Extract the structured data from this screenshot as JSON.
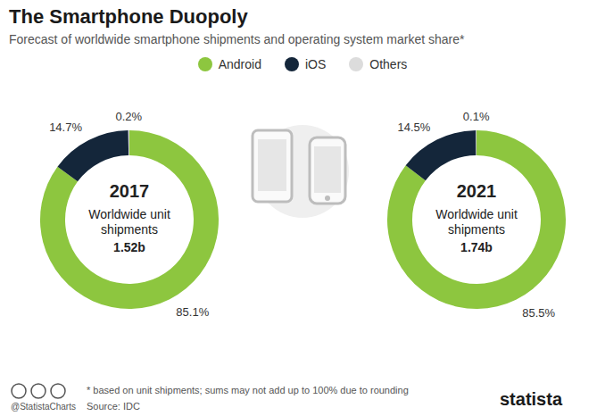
{
  "title": "The Smartphone Duopoly",
  "subtitle": "Forecast of worldwide smartphone shipments and operating system market share*",
  "legend": "top",
  "footnote": "* based on unit shipments; sums may not add up to 100% due to rounding",
  "source": "Source: IDC",
  "credit": "@StatistaCharts",
  "brand": "statista",
  "chart_data": [
    {
      "type": "pie",
      "title": "2017",
      "center_text": "Worldwide unit shipments",
      "total_label": "1.52b",
      "categories": [
        "Android",
        "iOS",
        "Others"
      ],
      "values": [
        85.1,
        14.7,
        0.2
      ],
      "value_labels": [
        "85.1%",
        "14.7%",
        "0.2%"
      ],
      "colors": [
        "#8dc63f",
        "#14263a",
        "#dcdcdc"
      ],
      "data_labels": true
    },
    {
      "type": "pie",
      "title": "2021",
      "center_text": "Worldwide unit shipments",
      "total_label": "1.74b",
      "categories": [
        "Android",
        "iOS",
        "Others"
      ],
      "values": [
        85.5,
        14.5,
        0.1
      ],
      "value_labels": [
        "85.5%",
        "14.5%",
        "0.1%"
      ],
      "colors": [
        "#8dc63f",
        "#14263a",
        "#dcdcdc"
      ],
      "data_labels": true
    }
  ]
}
